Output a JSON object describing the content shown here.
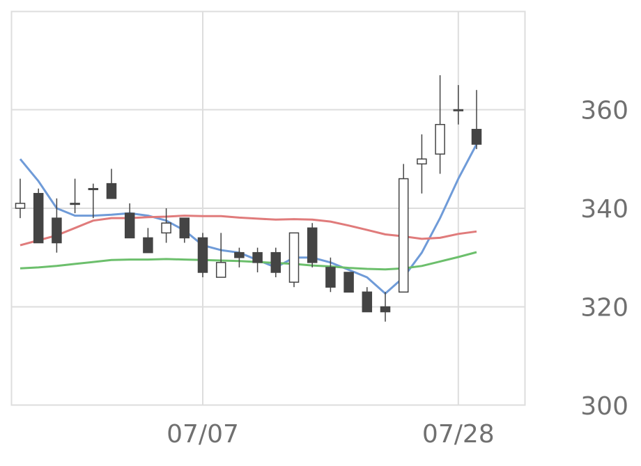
{
  "chart_data": {
    "type": "candlestick",
    "title": "",
    "xlabel": "",
    "ylabel": "",
    "ylim": [
      300,
      380
    ],
    "y_ticks": [
      "300",
      "320",
      "340",
      "360"
    ],
    "x_ticks": [
      {
        "label": "07/07",
        "index": 10
      },
      {
        "label": "07/28",
        "index": 24
      }
    ],
    "grid": true,
    "colors": {
      "up_body": "#ffffff",
      "down_body": "#444444",
      "wick": "#444444",
      "grid": "#dddddd",
      "ma_short": "#6f9bd8",
      "ma_mid": "#e07b7b",
      "ma_long": "#6cbf6c"
    },
    "candles": [
      {
        "open": 340,
        "high": 346,
        "low": 338,
        "close": 341
      },
      {
        "open": 343,
        "high": 344,
        "low": 333,
        "close": 333
      },
      {
        "open": 338,
        "high": 342,
        "low": 331,
        "close": 333
      },
      {
        "open": 341,
        "high": 346,
        "low": 339,
        "close": 341
      },
      {
        "open": 344,
        "high": 345,
        "low": 338,
        "close": 344
      },
      {
        "open": 345,
        "high": 348,
        "low": 342,
        "close": 342
      },
      {
        "open": 339,
        "high": 341,
        "low": 334,
        "close": 334
      },
      {
        "open": 334,
        "high": 336,
        "low": 331,
        "close": 331
      },
      {
        "open": 335,
        "high": 340,
        "low": 333,
        "close": 337
      },
      {
        "open": 338,
        "high": 338,
        "low": 333,
        "close": 334
      },
      {
        "open": 334,
        "high": 335,
        "low": 326,
        "close": 327
      },
      {
        "open": 326,
        "high": 335,
        "low": 326,
        "close": 329
      },
      {
        "open": 331,
        "high": 332,
        "low": 328,
        "close": 330
      },
      {
        "open": 331,
        "high": 332,
        "low": 327,
        "close": 329
      },
      {
        "open": 331,
        "high": 332,
        "low": 326,
        "close": 327
      },
      {
        "open": 325,
        "high": 335,
        "low": 324,
        "close": 335
      },
      {
        "open": 336,
        "high": 337,
        "low": 328,
        "close": 329
      },
      {
        "open": 328,
        "high": 330,
        "low": 323,
        "close": 324
      },
      {
        "open": 327,
        "high": 327,
        "low": 323,
        "close": 323
      },
      {
        "open": 323,
        "high": 324,
        "low": 319,
        "close": 319
      },
      {
        "open": 320,
        "high": 323,
        "low": 317,
        "close": 319
      },
      {
        "open": 323,
        "high": 349,
        "low": 323,
        "close": 346
      },
      {
        "open": 349,
        "high": 355,
        "low": 343,
        "close": 350
      },
      {
        "open": 351,
        "high": 367,
        "low": 347,
        "close": 357
      },
      {
        "open": 360,
        "high": 365,
        "low": 357,
        "close": 360
      },
      {
        "open": 356,
        "high": 364,
        "low": 352,
        "close": 353
      }
    ],
    "series": [
      {
        "key": "ma_short",
        "values": [
          350,
          345.5,
          340,
          338.5,
          338.5,
          338.7,
          339,
          338.5,
          337.5,
          335.5,
          332.5,
          331.5,
          331,
          329.5,
          328,
          330,
          330,
          329,
          327.5,
          326,
          322.7,
          326,
          331,
          338,
          346,
          353
        ]
      },
      {
        "key": "ma_mid",
        "values": [
          332.5,
          333.5,
          334.5,
          336,
          337.5,
          338,
          338,
          338.2,
          338.3,
          338.5,
          338.4,
          338.4,
          338.1,
          337.9,
          337.7,
          337.8,
          337.7,
          337.3,
          336.5,
          335.6,
          334.7,
          334.3,
          333.8,
          334,
          334.8,
          335.3
        ]
      },
      {
        "key": "ma_long",
        "values": [
          327.8,
          328,
          328.3,
          328.7,
          329.1,
          329.5,
          329.6,
          329.6,
          329.7,
          329.6,
          329.5,
          329.4,
          329.3,
          329.1,
          328.9,
          328.7,
          328.4,
          328.2,
          327.9,
          327.7,
          327.6,
          327.8,
          328.3,
          329.2,
          330.1,
          331.1
        ]
      }
    ]
  }
}
